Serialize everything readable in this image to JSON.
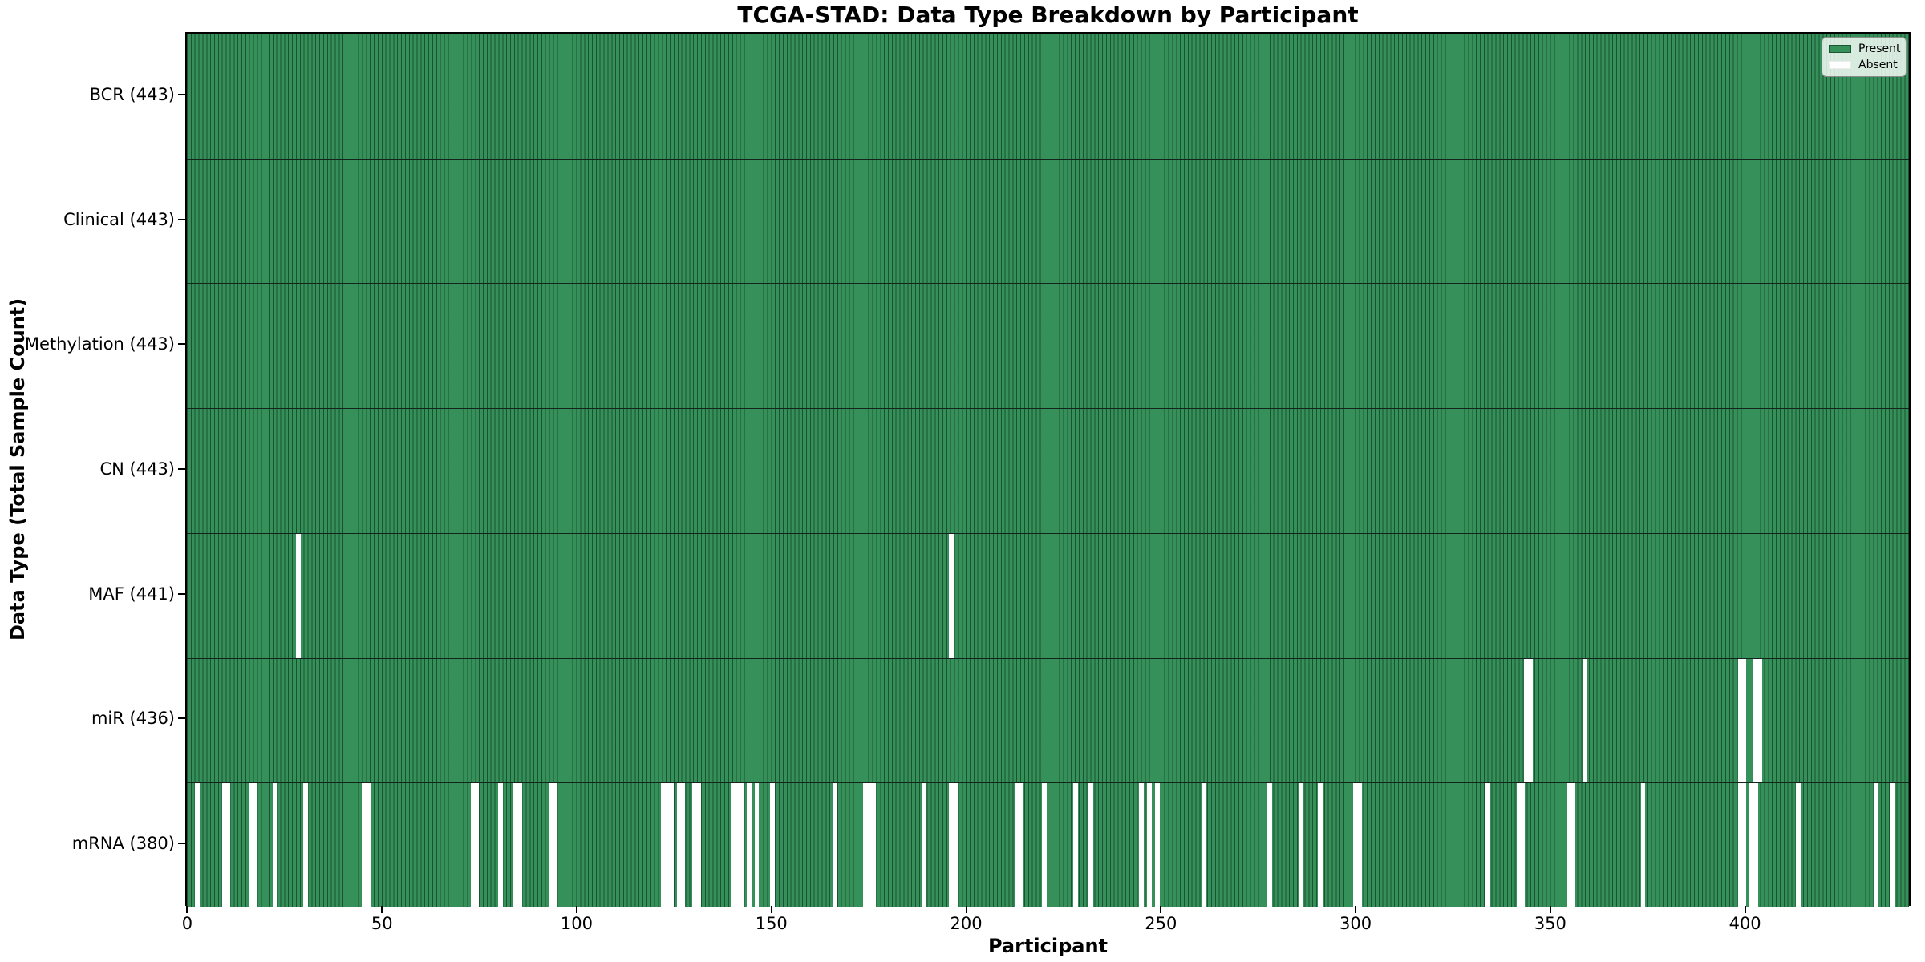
{
  "figure": {
    "background": "#ffffff"
  },
  "chart_data": {
    "type": "heatmap",
    "title": "TCGA-STAD: Data Type Breakdown by Participant",
    "xlabel": "Participant",
    "ylabel": "Data Type (Total Sample Count)",
    "x_ticks": [
      0,
      50,
      100,
      150,
      200,
      250,
      300,
      350,
      400
    ],
    "xlim": [
      -0.5,
      442.5
    ],
    "n_participants": 443,
    "grid": "row dividers only",
    "legend": {
      "position": "upper right",
      "entries": [
        {
          "label": "Present",
          "color": "#35905a"
        },
        {
          "label": "Absent",
          "color": "#ffffff"
        }
      ]
    },
    "colors": {
      "present": "#35905a",
      "absent": "#ffffff",
      "cell_edge": "rgba(0,22,10,0.5)",
      "row_divider": "#15241b",
      "axis": "#000000",
      "legend_bg": "rgba(253,255,253,0.82)",
      "legend_border": "#8a8a8a"
    },
    "rows": [
      {
        "name": "BCR",
        "count": 443,
        "label": "BCR (443)",
        "absent": []
      },
      {
        "name": "Clinical",
        "count": 443,
        "label": "Clinical (443)",
        "absent": []
      },
      {
        "name": "Methylation",
        "count": 443,
        "label": "Methylation (443)",
        "absent": []
      },
      {
        "name": "CN",
        "count": 443,
        "label": "CN (443)",
        "absent": []
      },
      {
        "name": "MAF",
        "count": 441,
        "label": "MAF (441)",
        "absent": [
          28,
          196
        ]
      },
      {
        "name": "miR",
        "count": 436,
        "label": "miR (436)",
        "absent": [
          344,
          345,
          359,
          399,
          400,
          403,
          404
        ]
      },
      {
        "name": "mRNA",
        "count": 380,
        "label": "mRNA (380)",
        "absent": [
          2,
          9,
          10,
          16,
          17,
          22,
          30,
          45,
          46,
          73,
          74,
          80,
          84,
          85,
          93,
          94,
          122,
          123,
          124,
          126,
          127,
          130,
          131,
          140,
          141,
          142,
          144,
          146,
          150,
          166,
          174,
          175,
          176,
          189,
          196,
          197,
          213,
          214,
          220,
          228,
          232,
          245,
          247,
          249,
          261,
          278,
          286,
          291,
          300,
          301,
          334,
          342,
          343,
          355,
          356,
          374,
          399,
          400,
          402,
          403,
          414,
          434,
          438
        ]
      }
    ]
  }
}
